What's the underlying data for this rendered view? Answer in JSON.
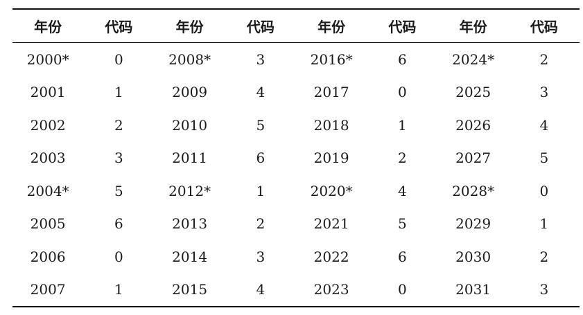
{
  "table": {
    "headers": [
      "年份",
      "代码",
      "年份",
      "代码",
      "年份",
      "代码",
      "年份",
      "代码"
    ],
    "rows": [
      [
        "2000*",
        "0",
        "2008*",
        "3",
        "2016*",
        "6",
        "2024*",
        "2"
      ],
      [
        "2001",
        "1",
        "2009",
        "4",
        "2017",
        "0",
        "2025",
        "3"
      ],
      [
        "2002",
        "2",
        "2010",
        "5",
        "2018",
        "1",
        "2026",
        "4"
      ],
      [
        "2003",
        "3",
        "2011",
        "6",
        "2019",
        "2",
        "2027",
        "5"
      ],
      [
        "2004*",
        "5",
        "2012*",
        "1",
        "2020*",
        "4",
        "2028*",
        "0"
      ],
      [
        "2005",
        "6",
        "2013",
        "2",
        "2021",
        "5",
        "2029",
        "1"
      ],
      [
        "2006",
        "0",
        "2014",
        "3",
        "2022",
        "6",
        "2030",
        "2"
      ],
      [
        "2007",
        "1",
        "2015",
        "4",
        "2023",
        "0",
        "2031",
        "3"
      ]
    ]
  }
}
